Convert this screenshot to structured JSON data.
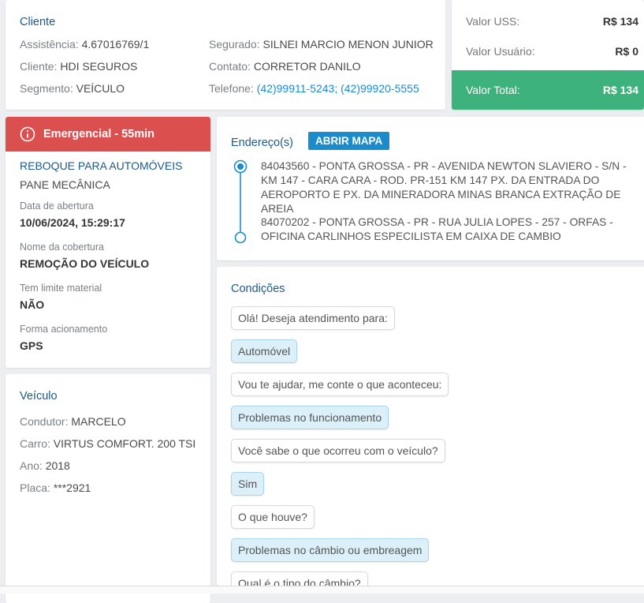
{
  "cliente": {
    "title": "Cliente",
    "fields": [
      {
        "label": "Assistência:",
        "value": "4.67016769/1"
      },
      {
        "label": "Cliente:",
        "value": "HDI SEGUROS"
      },
      {
        "label": "Segmento:",
        "value": "VEÍCULO"
      },
      {
        "label": "Segurado:",
        "value": "SILNEI MARCIO MENON JUNIOR"
      },
      {
        "label": "Contato:",
        "value": "CORRETOR DANILO"
      },
      {
        "label": "Telefone:",
        "value": "(42)99911-5243; (42)99920-5555"
      }
    ]
  },
  "valores": {
    "rows": [
      {
        "label": "Valor USS:",
        "value": "R$ 134"
      },
      {
        "label": "Valor Usuário:",
        "value": "R$ 0"
      },
      {
        "label": "Valor Total:",
        "value": "R$ 134"
      }
    ]
  },
  "atendimento": {
    "header": "Emergencial - 55min",
    "servico": "REBOQUE PARA AUTOMÓVEIS",
    "motivo": "PANE MECÂNICA",
    "details": [
      {
        "label": "Data de abertura",
        "value": "10/06/2024, 15:29:17"
      },
      {
        "label": "Nome da cobertura",
        "value": "REMOÇÃO DO VEÍCULO"
      },
      {
        "label": "Tem limite material",
        "value": "NÃO"
      },
      {
        "label": "Forma acionamento",
        "value": "GPS"
      }
    ]
  },
  "veiculo": {
    "title": "Veículo",
    "fields": [
      {
        "label": "Condutor:",
        "value": "MARCELO"
      },
      {
        "label": "Carro:",
        "value": "VIRTUS COMFORT. 200 TSI"
      },
      {
        "label": "Ano:",
        "value": "2018"
      },
      {
        "label": "Placa:",
        "value": "***2921"
      }
    ]
  },
  "enderecos": {
    "title": "Endereço(s)",
    "button": "ABRIR MAPA",
    "items": [
      "84043560 - PONTA GROSSA - PR - AVENIDA NEWTON SLAVIERO - S/N - KM 147 - CARA CARA - ROD. PR-151 KM 147 PX. DA ENTRADA DO AEROPORTO E PX. DA MINERADORA MINAS BRANCA EXTRAÇÃO DE AREIA",
      "84070202 - PONTA GROSSA - PR - RUA JULIA LOPES - 257 - ORFAS - OFICINA CARLINHOS ESPECILISTA EM CAIXA DE CAMBIO"
    ]
  },
  "condicoes": {
    "title": "Condições",
    "messages": [
      "Olá! Deseja atendimento para:",
      "Automóvel",
      "Vou te ajudar, me conte o que aconteceu:",
      "Problemas no funcionamento",
      "Você sabe o que ocorreu com o veículo?",
      "Sim",
      "O que houve?",
      "Problemas no câmbio ou embreagem",
      "Qual é o tipo do câmbio?"
    ]
  }
}
